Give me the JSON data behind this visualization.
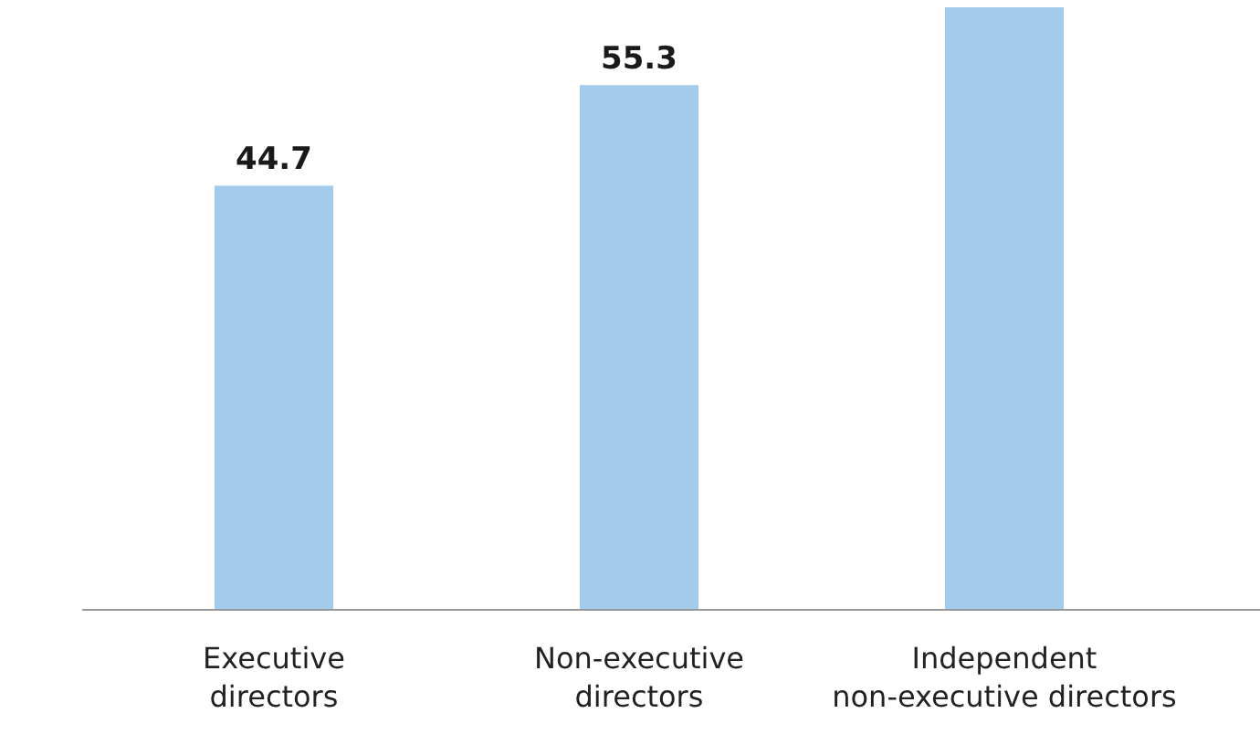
{
  "chart_data": {
    "type": "bar",
    "categories": [
      "Executive directors",
      "Non-executive directors",
      "Independent non-executive directors"
    ],
    "values": [
      44.7,
      55.3,
      63.5
    ],
    "color": "#a3ccec",
    "value_labels": [
      "44.7",
      "55.3",
      null
    ]
  }
}
